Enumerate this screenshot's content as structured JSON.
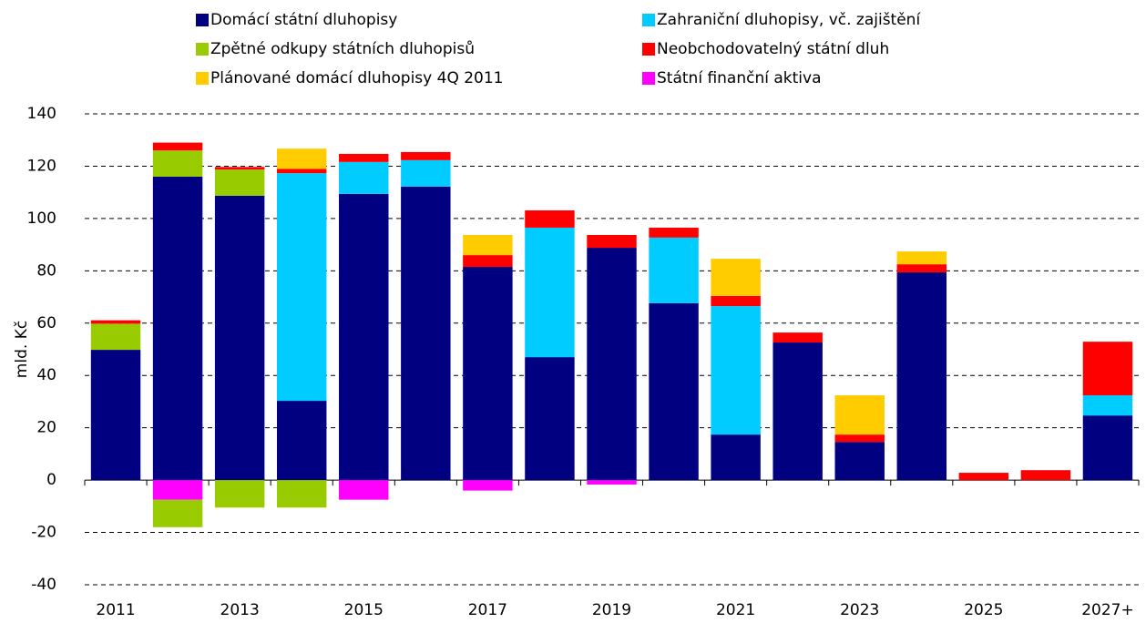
{
  "chart_data": {
    "type": "stacked-bar",
    "y_label": "mld. Kč",
    "categories": [
      "2011",
      null,
      "2013",
      null,
      "2015",
      null,
      "2017",
      null,
      "2019",
      null,
      "2021",
      null,
      "2023",
      null,
      "2025",
      null,
      "2027+"
    ],
    "series": [
      {
        "name": "Domácí státní dluhopisy",
        "color": "#000080",
        "values": [
          49.8,
          116,
          108.7,
          30.3,
          109.4,
          112.2,
          81.5,
          47,
          88.8,
          67.6,
          17.4,
          52.6,
          14.6,
          79.4,
          null,
          null,
          24.7
        ]
      },
      {
        "name": "Zahraniční dluhopisy, vč. zajištění",
        "color": "#00ccff",
        "values": [
          null,
          null,
          null,
          87,
          12.2,
          10.1,
          null,
          49.5,
          null,
          25.1,
          49.1,
          null,
          null,
          null,
          null,
          null,
          7.7
        ]
      },
      {
        "name": "Zpětné odkupy státních dluhopisů",
        "color": "#99cc00",
        "values": [
          10,
          10,
          10,
          null,
          null,
          null,
          null,
          null,
          null,
          null,
          null,
          null,
          null,
          null,
          null,
          null,
          null
        ]
      },
      {
        "name": "Neobchodovatelný státní dluh",
        "color": "#ff0000",
        "values": [
          1.3,
          3,
          1,
          1.7,
          3.1,
          3.1,
          4.5,
          6.6,
          4.9,
          3.8,
          3.9,
          3.8,
          2.8,
          3.1,
          2.8,
          3.8,
          20.5
        ]
      },
      {
        "name": "Plánované domácí dluhopisy 4Q 2011",
        "color": "#ffcc00",
        "values": [
          null,
          null,
          null,
          7.7,
          null,
          null,
          7.7,
          null,
          null,
          null,
          14.2,
          null,
          15,
          4.9,
          null,
          null,
          null
        ]
      },
      {
        "name": "Státní finanční aktiva",
        "color": "#ff00ff",
        "values": [
          null,
          -7.5,
          null,
          null,
          -7.5,
          null,
          -4,
          null,
          -1.7,
          null,
          null,
          null,
          null,
          null,
          null,
          null,
          null
        ]
      }
    ],
    "negative_values": {
      "Zpětné odkupy státních dluhopisů": [
        null,
        -10.5,
        -10.5,
        -10.5,
        null,
        null,
        null,
        null,
        null,
        null,
        null,
        null,
        null,
        null,
        null,
        null,
        null
      ]
    },
    "ylim": [
      -40,
      140
    ],
    "yticks": [
      -40,
      -20,
      0,
      20,
      40,
      60,
      80,
      100,
      120,
      140
    ],
    "grid": true
  }
}
